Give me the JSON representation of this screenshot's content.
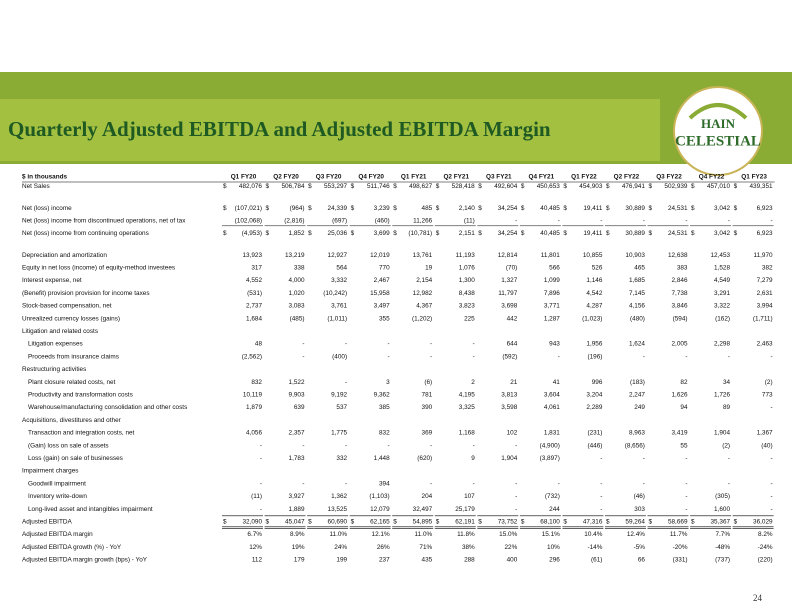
{
  "header": {
    "title": "Quarterly Adjusted EBITDA and Adjusted EBITDA Margin",
    "logo": {
      "line1": "HAIN",
      "line2": "CELESTIAL"
    }
  },
  "table": {
    "corner": "$ in thousands",
    "prefix": "$",
    "columns": [
      "Q1 FY20",
      "Q2 FY20",
      "Q3 FY20",
      "Q4 FY20",
      "Q1 FY21",
      "Q2 FY21",
      "Q3 FY21",
      "Q4 FY21",
      "Q1 FY22",
      "Q2 FY22",
      "Q3 FY22",
      "Q4 FY22",
      "Q1 FY23"
    ],
    "rows": [
      {
        "label": "Net Sales",
        "dollar": true,
        "values": [
          "482,076",
          "506,784",
          "553,297",
          "511,746",
          "498,627",
          "528,418",
          "492,604",
          "450,653",
          "454,903",
          "476,941",
          "502,939",
          "457,010",
          "439,351"
        ]
      },
      {
        "label": "Net (loss) income",
        "dollar": true,
        "values": [
          "(107,021)",
          "(964)",
          "24,339",
          "3,239",
          "485",
          "2,140",
          "34,254",
          "40,485",
          "19,411",
          "30,889",
          "24,531",
          "3,042",
          "6,923"
        ]
      },
      {
        "label": "Net (loss) income from discontinued operations, net of tax",
        "values": [
          "(102,068)",
          "(2,816)",
          "(697)",
          "(460)",
          "11,266",
          "(11)",
          "-",
          "-",
          "-",
          "-",
          "-",
          "-",
          "-"
        ]
      },
      {
        "label": "Net (loss) income from continuing operations",
        "dollar": true,
        "values": [
          "(4,953)",
          "1,852",
          "25,036",
          "3,699",
          "(10,781)",
          "2,151",
          "34,254",
          "40,485",
          "19,411",
          "30,889",
          "24,531",
          "3,042",
          "6,923"
        ]
      },
      {
        "label": "Depreciation and amortization",
        "values": [
          "13,923",
          "13,219",
          "12,927",
          "12,019",
          "13,761",
          "11,193",
          "12,814",
          "11,801",
          "10,855",
          "10,903",
          "12,638",
          "12,453",
          "11,970"
        ]
      },
      {
        "label": "Equity in net loss (income) of equity-method investees",
        "values": [
          "317",
          "338",
          "564",
          "770",
          "19",
          "1,076",
          "(70)",
          "566",
          "526",
          "465",
          "383",
          "1,528",
          "382"
        ]
      },
      {
        "label": "Interest expense, net",
        "values": [
          "4,552",
          "4,000",
          "3,332",
          "2,467",
          "2,154",
          "1,300",
          "1,327",
          "1,099",
          "1,146",
          "1,685",
          "2,846",
          "4,549",
          "7,279"
        ]
      },
      {
        "label": "(Benefit) provision provision for income taxes",
        "values": [
          "(531)",
          "1,020",
          "(10,242)",
          "15,958",
          "12,982",
          "8,438",
          "11,797",
          "7,896",
          "4,542",
          "7,145",
          "7,738",
          "3,291",
          "2,631"
        ]
      },
      {
        "label": "Stock-based compensation, net",
        "values": [
          "2,737",
          "3,083",
          "3,761",
          "3,497",
          "4,367",
          "3,823",
          "3,698",
          "3,771",
          "4,287",
          "4,156",
          "3,846",
          "3,322",
          "3,994"
        ]
      },
      {
        "label": "Unrealized currency losses (gains)",
        "values": [
          "1,684",
          "(485)",
          "(1,011)",
          "355",
          "(1,202)",
          "225",
          "442",
          "1,287",
          "(1,023)",
          "(480)",
          "(594)",
          "(162)",
          "(1,711)"
        ]
      },
      {
        "label": "Litigation and related costs",
        "items": [
          {
            "label": "Litigation expenses",
            "values": [
              "48",
              "-",
              "-",
              "-",
              "-",
              "-",
              "644",
              "943",
              "1,956",
              "1,624",
              "2,005",
              "2,298",
              "2,463"
            ]
          },
          {
            "label": "Proceeds from insurance claims",
            "values": [
              "(2,562)",
              "-",
              "(400)",
              "-",
              "-",
              "-",
              "(592)",
              "-",
              "(196)",
              "-",
              "-",
              "-",
              "-"
            ]
          }
        ]
      },
      {
        "label": "Restructuring activities",
        "items": [
          {
            "label": "Plant closure related costs, net",
            "values": [
              "832",
              "1,522",
              "-",
              "3",
              "(6)",
              "2",
              "21",
              "41",
              "996",
              "(183)",
              "82",
              "34",
              "(2)"
            ]
          },
          {
            "label": "Productivity and transformation costs",
            "values": [
              "10,119",
              "9,903",
              "9,192",
              "9,362",
              "781",
              "4,195",
              "3,813",
              "3,604",
              "3,204",
              "2,247",
              "1,626",
              "1,726",
              "773"
            ]
          },
          {
            "label": "Warehouse/manufacturing consolidation and other costs",
            "values": [
              "1,879",
              "639",
              "537",
              "385",
              "390",
              "3,325",
              "3,598",
              "4,061",
              "2,289",
              "249",
              "94",
              "89",
              "-"
            ]
          }
        ]
      },
      {
        "label": "Acquisitions, divestitures and other",
        "items": [
          {
            "label": "Transaction and integration costs, net",
            "values": [
              "4,056",
              "2,357",
              "1,775",
              "832",
              "369",
              "1,168",
              "102",
              "1,831",
              "(231)",
              "8,963",
              "3,419",
              "1,904",
              "1,367"
            ]
          },
          {
            "label": "(Gain) loss on sale of assets",
            "values": [
              "-",
              "-",
              "-",
              "-",
              "-",
              "-",
              "-",
              "(4,900)",
              "(446)",
              "(8,656)",
              "55",
              "(2)",
              "(40)"
            ]
          },
          {
            "label": "Loss (gain) on sale of businesses",
            "values": [
              "-",
              "1,783",
              "332",
              "1,448",
              "(620)",
              "9",
              "1,904",
              "(3,897)",
              "-",
              "-",
              "-",
              "-",
              "-"
            ]
          }
        ]
      },
      {
        "label": "Impairment charges",
        "items": [
          {
            "label": "Goodwill impairment",
            "values": [
              "-",
              "-",
              "-",
              "394",
              "-",
              "-",
              "-",
              "-",
              "-",
              "-",
              "-",
              "-",
              "-"
            ]
          },
          {
            "label": "Inventory write-down",
            "values": [
              "(11)",
              "3,927",
              "1,362",
              "(1,103)",
              "204",
              "107",
              "-",
              "(732)",
              "-",
              "(46)",
              "-",
              "(305)",
              "-"
            ]
          },
          {
            "label": "Long-lived asset and intangibles impairment",
            "values": [
              "-",
              "1,889",
              "13,525",
              "12,079",
              "32,497",
              "25,179",
              "-",
              "244",
              "-",
              "303",
              "-",
              "1,600",
              "-"
            ]
          }
        ]
      },
      {
        "label": "Adjusted EBITDA",
        "dollar": true,
        "values": [
          "32,090",
          "45,047",
          "60,690",
          "62,165",
          "54,895",
          "62,191",
          "73,752",
          "68,100",
          "47,316",
          "59,264",
          "58,669",
          "35,367",
          "36,029"
        ]
      },
      {
        "label": "Adjusted EBITDA margin",
        "values": [
          "6.7%",
          "8.9%",
          "11.0%",
          "12.1%",
          "11.0%",
          "11.8%",
          "15.0%",
          "15.1%",
          "10.4%",
          "12.4%",
          "11.7%",
          "7.7%",
          "8.2%"
        ]
      },
      {
        "label": "Adjusted EBITDA growth (%) - YoY",
        "values": [
          "12%",
          "19%",
          "24%",
          "26%",
          "71%",
          "38%",
          "22%",
          "10%",
          "-14%",
          "-5%",
          "-20%",
          "-48%",
          "-24%"
        ]
      },
      {
        "label": "Adjusted EBITDA margin growth (bps) - YoY",
        "values": [
          "112",
          "179",
          "199",
          "237",
          "435",
          "288",
          "400",
          "296",
          "(61)",
          "66",
          "(331)",
          "(737)",
          "(220)"
        ]
      }
    ]
  },
  "footer": {
    "page": "24"
  }
}
